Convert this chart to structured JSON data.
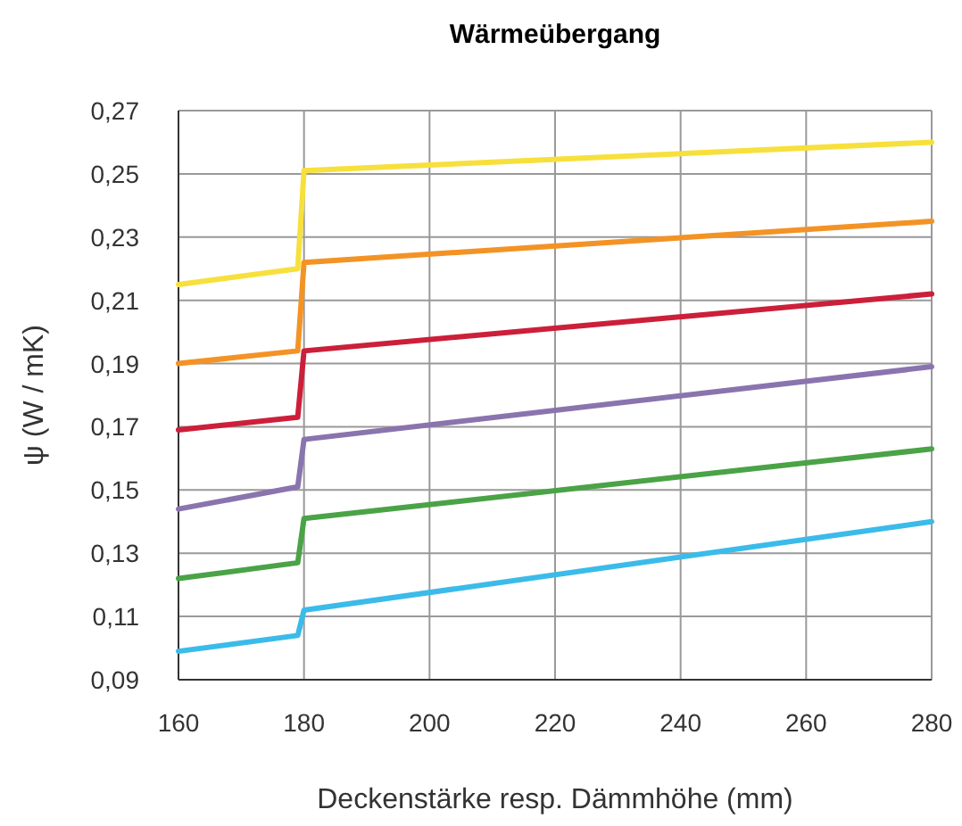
{
  "chart_data": {
    "type": "line",
    "title": "Wärmeübergang",
    "xlabel": "Deckenstärke resp. Dämmhöhe (mm)",
    "ylabel": "ψ (W / mK)",
    "xlim": [
      160,
      280
    ],
    "xticks": [
      160,
      180,
      200,
      220,
      240,
      260,
      280
    ],
    "ylim": [
      0.09,
      0.27
    ],
    "yticks": [
      {
        "value": 0.09,
        "label": "0,09"
      },
      {
        "value": 0.11,
        "label": "0,11"
      },
      {
        "value": 0.13,
        "label": "0,13"
      },
      {
        "value": 0.15,
        "label": "0,15"
      },
      {
        "value": 0.17,
        "label": "0,17"
      },
      {
        "value": 0.19,
        "label": "0,19"
      },
      {
        "value": 0.21,
        "label": "0,21"
      },
      {
        "value": 0.23,
        "label": "0,23"
      },
      {
        "value": 0.25,
        "label": "0,25"
      },
      {
        "value": 0.27,
        "label": "0,27"
      }
    ],
    "grid": true,
    "line_style": "solid",
    "x": [
      160,
      179,
      180,
      280
    ],
    "series": [
      {
        "color": "#f7e03c",
        "values": [
          0.215,
          0.22,
          0.251,
          0.26
        ]
      },
      {
        "color": "#f39325",
        "values": [
          0.19,
          0.194,
          0.222,
          0.235
        ]
      },
      {
        "color": "#cc1f3a",
        "values": [
          0.169,
          0.173,
          0.194,
          0.212
        ]
      },
      {
        "color": "#8a74ae",
        "values": [
          0.144,
          0.151,
          0.166,
          0.189
        ]
      },
      {
        "color": "#4aa346",
        "values": [
          0.122,
          0.127,
          0.141,
          0.163
        ]
      },
      {
        "color": "#3bbbe9",
        "values": [
          0.099,
          0.104,
          0.112,
          0.14
        ]
      }
    ]
  }
}
